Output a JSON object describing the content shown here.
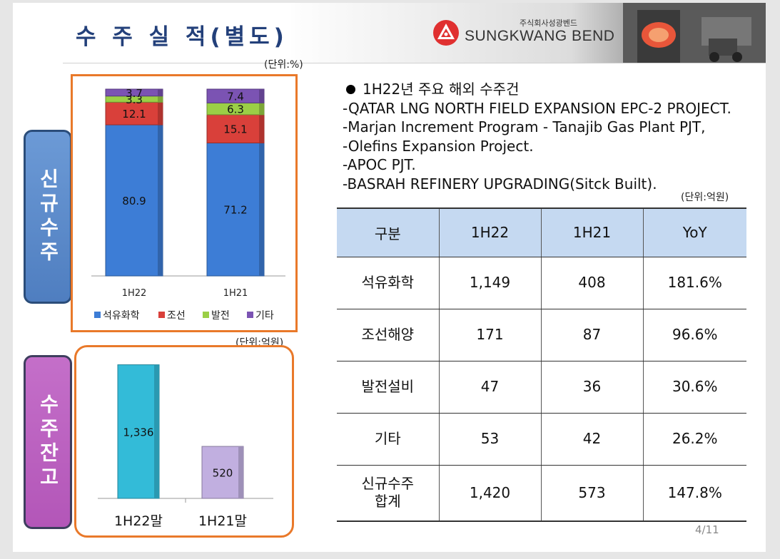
{
  "header": {
    "title": "수 주 실 적(별도)",
    "company_kr": "주식회사성광벤드",
    "company_en": "SUNGKWANG BEND"
  },
  "side_labels": {
    "new_orders": "신규수주",
    "backlog": "수주잔고"
  },
  "units": {
    "percent": "(단위:%)",
    "krw_left": "(단위:억원)",
    "krw_right": "(단위:억원)"
  },
  "chart_data": [
    {
      "type": "bar",
      "stacked": true,
      "categories": [
        "1H22",
        "1H21"
      ],
      "series": [
        {
          "name": "석유화학",
          "color": "#3d7dd6",
          "values": [
            80.9,
            71.2
          ]
        },
        {
          "name": "조선",
          "color": "#d9403a",
          "values": [
            12.1,
            15.1
          ]
        },
        {
          "name": "발전",
          "color": "#9bcf46",
          "values": [
            3.3,
            6.3
          ]
        },
        {
          "name": "기타",
          "color": "#7b53b3",
          "values": [
            3.7,
            7.4
          ]
        }
      ],
      "ylim": [
        0,
        100
      ],
      "legend": "bottom"
    },
    {
      "type": "bar",
      "categories": [
        "1H22말",
        "1H21말"
      ],
      "value_labels": [
        "1,336",
        "520"
      ],
      "values": [
        1336,
        520
      ],
      "colors": [
        "#33bbd8",
        "#c1afe0"
      ],
      "ylim": [
        0,
        1400
      ]
    }
  ],
  "projects": {
    "heading": "1H22년 주요 해외 수주건",
    "items": [
      "-QATAR LNG NORTH FIELD EXPANSION EPC-2 PROJECT.",
      "-Marjan Increment Program - Tanajib Gas Plant PJT,",
      "-Olefins Expansion Project.",
      "-APOC PJT.",
      "-BASRAH REFINERY UPGRADING(Sitck Built)."
    ]
  },
  "table": {
    "headers": [
      "구분",
      "1H22",
      "1H21",
      "YoY"
    ],
    "rows": [
      [
        "석유화학",
        "1,149",
        "408",
        "181.6%"
      ],
      [
        "조선해양",
        "171",
        "87",
        "96.6%"
      ],
      [
        "발전설비",
        "47",
        "36",
        "30.6%"
      ],
      [
        "기타",
        "53",
        "42",
        "26.2%"
      ],
      [
        "신규수주\n합계",
        "1,420",
        "573",
        "147.8%"
      ]
    ]
  },
  "page_number": "4/11"
}
